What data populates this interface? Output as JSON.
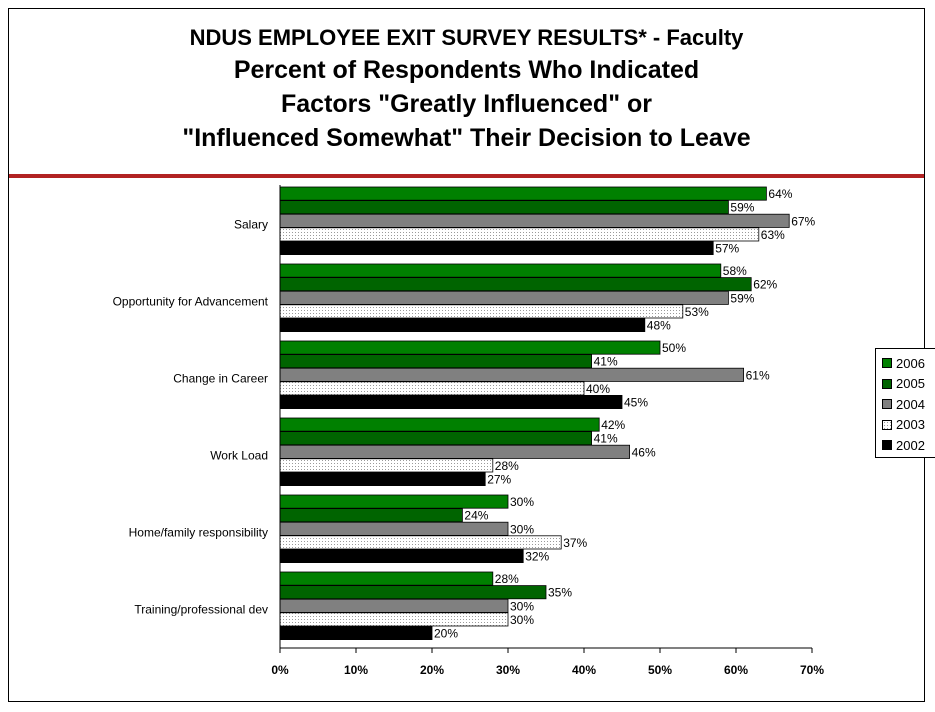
{
  "chart_data": {
    "type": "bar",
    "orientation": "horizontal",
    "title": "NDUS EMPLOYEE EXIT SURVEY RESULTS* - Faculty",
    "subtitle": "Percent of Respondents Who Indicated Factors \"Greatly Influenced\" or \"Influenced Somewhat\" Their Decision to Leave",
    "categories": [
      "Salary",
      "Opportunity for Advancement",
      "Change in Career",
      "Work Load",
      "Home/family responsibility",
      "Training/professional dev"
    ],
    "series": [
      {
        "name": "2006",
        "color": "#008000",
        "values": [
          64,
          58,
          50,
          42,
          30,
          28
        ]
      },
      {
        "name": "2005",
        "color": "#006400",
        "values": [
          59,
          62,
          41,
          41,
          24,
          35
        ]
      },
      {
        "name": "2004",
        "color": "#808080",
        "values": [
          67,
          59,
          61,
          46,
          30,
          30
        ]
      },
      {
        "name": "2003",
        "color": "#ffffff",
        "pattern": "dotted",
        "values": [
          63,
          53,
          40,
          28,
          37,
          30
        ]
      },
      {
        "name": "2002",
        "color": "#000000",
        "values": [
          57,
          48,
          45,
          27,
          32,
          20
        ]
      }
    ],
    "xlabel": "",
    "ylabel": "",
    "xlim": [
      0,
      70
    ],
    "xticks": [
      0,
      10,
      20,
      30,
      40,
      50,
      60,
      70
    ],
    "tick_suffix": "%",
    "grid": false,
    "legend": "right"
  },
  "title_lines": [
    "NDUS EMPLOYEE EXIT SURVEY RESULTS* - Faculty",
    "Percent of Respondents Who Indicated",
    "Factors \"Greatly Influenced\" or",
    "\"Influenced Somewhat\" Their Decision to Leave"
  ],
  "colors": {
    "accent_rule": "#b22222"
  }
}
